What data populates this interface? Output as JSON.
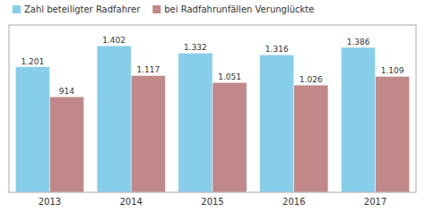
{
  "chart_data": {
    "type": "bar",
    "categories": [
      "2013",
      "2014",
      "2015",
      "2016",
      "2017"
    ],
    "series": [
      {
        "name": "Zahl beteiligter Radfahrer",
        "color": "#87CEEB",
        "values": [
          1201,
          1402,
          1332,
          1316,
          1386
        ],
        "value_labels": [
          "1.201",
          "1.402",
          "1.332",
          "1.316",
          "1.386"
        ]
      },
      {
        "name": "bei Radfahrunfällen Verunglückte",
        "color": "#C08888",
        "values": [
          914,
          1117,
          1051,
          1026,
          1109
        ],
        "value_labels": [
          "914",
          "1.117",
          "1.051",
          "1.026",
          "1.109"
        ]
      }
    ],
    "ylim": [
      0,
      1600
    ],
    "grid": false,
    "legend": "upper left",
    "data_labels": true,
    "tick_labels": "x"
  }
}
